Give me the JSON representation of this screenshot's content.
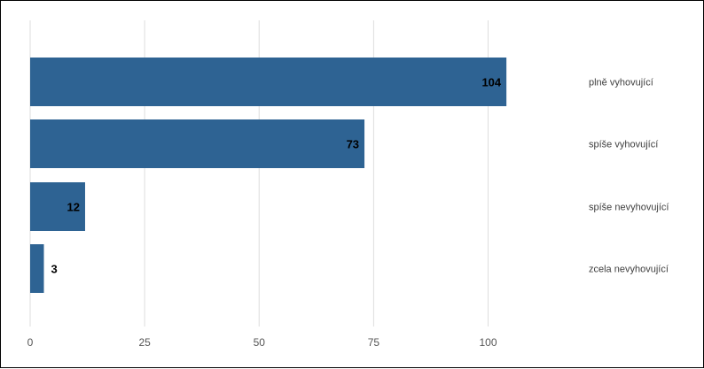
{
  "chart_data": {
    "type": "bar",
    "orientation": "horizontal",
    "categories": [
      "plně vyhovující",
      "spíše vyhovující",
      "spíše nevyhovující",
      "zcela nevyhovující"
    ],
    "values": [
      104,
      73,
      12,
      3
    ],
    "x_ticks": [
      "0",
      "25",
      "50",
      "75",
      "100"
    ],
    "xlim": [
      0,
      125
    ],
    "grid": true,
    "bar_color": "#2e6393",
    "title": "",
    "xlabel": "",
    "ylabel": ""
  }
}
